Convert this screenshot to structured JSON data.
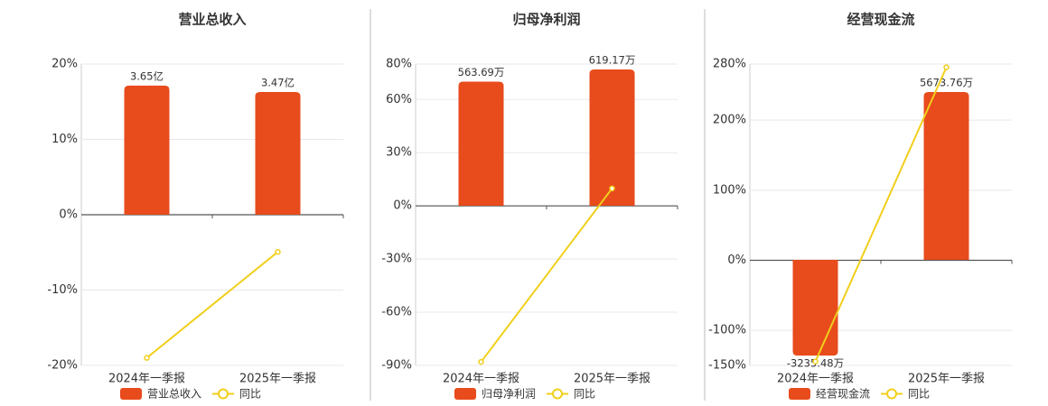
{
  "chart_data": [
    {
      "type": "combo",
      "title": "营业总收入",
      "categories": [
        "2024年一季报",
        "2025年一季报"
      ],
      "series": [
        {
          "name": "营业总收入",
          "type": "bar",
          "color": "#e84b1c",
          "axis": "y2",
          "values": [
            3.65,
            3.47
          ],
          "value_labels": [
            "3.65亿",
            "3.47亿"
          ]
        },
        {
          "name": "同比",
          "type": "line",
          "color": "#f1cf1b",
          "values": [
            -19.0,
            -4.93
          ]
        }
      ],
      "ylim": [
        -20,
        20
      ],
      "yticks": [
        {
          "value": -20,
          "label": "-20%"
        },
        {
          "value": -10,
          "label": "-10%"
        },
        {
          "value": 0,
          "label": "0%"
        },
        {
          "value": 10,
          "label": "10%"
        },
        {
          "value": 20,
          "label": "20%"
        }
      ],
      "y2lim": [
        -4.26,
        4.26
      ],
      "grid": true,
      "legend": "bottom"
    },
    {
      "type": "combo",
      "title": "归母净利润",
      "categories": [
        "2024年一季报",
        "2025年一季报"
      ],
      "series": [
        {
          "name": "归母净利润",
          "type": "bar",
          "color": "#e84b1c",
          "axis": "y2",
          "values": [
            563.69,
            619.17
          ],
          "value_labels": [
            "563.69万",
            "619.17万"
          ]
        },
        {
          "name": "同比",
          "type": "line",
          "color": "#f1cf1b",
          "values": [
            -88.0,
            9.84
          ]
        }
      ],
      "ylim": [
        -90,
        80
      ],
      "yticks": [
        {
          "value": -90,
          "label": "-90%"
        },
        {
          "value": -60,
          "label": "-60%"
        },
        {
          "value": -30,
          "label": "-30%"
        },
        {
          "value": 0,
          "label": "0%"
        },
        {
          "value": 30,
          "label": "30%"
        },
        {
          "value": 60,
          "label": "60%"
        },
        {
          "value": 80,
          "label": "80%"
        }
      ],
      "y2lim": [
        -725.7,
        643.7
      ],
      "grid": true,
      "legend": "bottom"
    },
    {
      "type": "combo",
      "title": "经营现金流",
      "categories": [
        "2024年一季报",
        "2025年一季报"
      ],
      "series": [
        {
          "name": "经营现金流",
          "type": "bar",
          "color": "#e84b1c",
          "axis": "y2",
          "values": [
            -3235.48,
            5673.76
          ],
          "value_labels": [
            "-3235.48万",
            "5673.76万"
          ]
        },
        {
          "name": "同比",
          "type": "line",
          "color": "#f1cf1b",
          "values": [
            -144.5,
            275.36
          ]
        }
      ],
      "ylim": [
        -150,
        280
      ],
      "yticks": [
        {
          "value": -150,
          "label": "-150%"
        },
        {
          "value": -100,
          "label": "-100%"
        },
        {
          "value": 0,
          "label": "0%"
        },
        {
          "value": 100,
          "label": "100%"
        },
        {
          "value": 200,
          "label": "200%"
        },
        {
          "value": 280,
          "label": "280%"
        }
      ],
      "y2lim": [
        -3569,
        6619
      ],
      "grid": true,
      "legend": "bottom"
    }
  ]
}
